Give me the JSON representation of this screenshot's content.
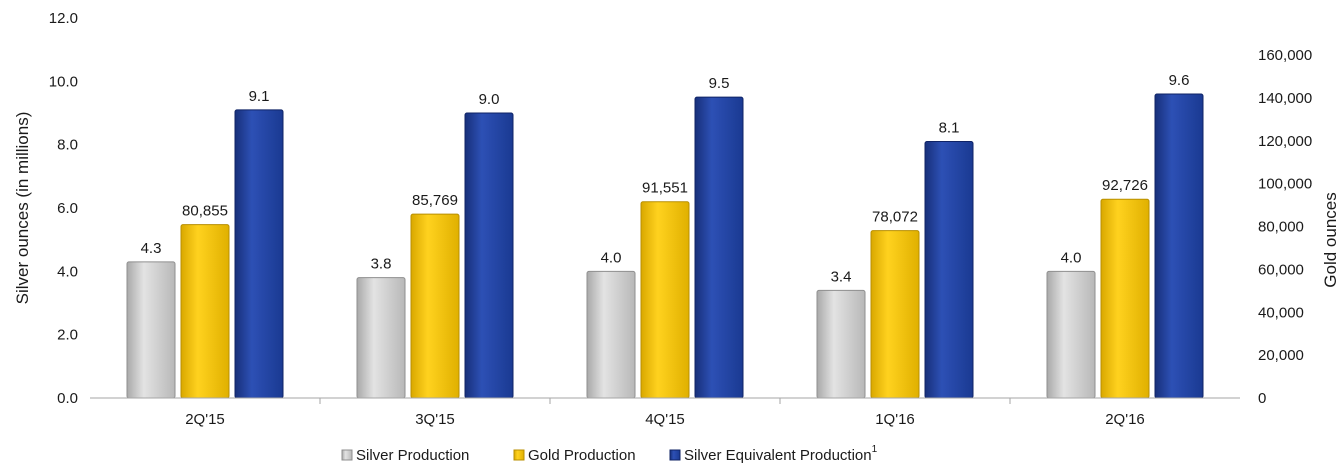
{
  "chart_data": {
    "type": "bar",
    "categories": [
      "2Q'15",
      "3Q'15",
      "4Q'15",
      "1Q'16",
      "2Q'16"
    ],
    "series": [
      {
        "name": "Silver Production",
        "axis": "left",
        "color": "#c8c8c8",
        "values": [
          4.3,
          3.8,
          4.0,
          3.4,
          4.0
        ],
        "labels": [
          "4.3",
          "3.8",
          "4.0",
          "3.4",
          "4.0"
        ]
      },
      {
        "name": "Gold Production",
        "axis": "right",
        "color": "#f2c200",
        "values": [
          80855,
          85769,
          91551,
          78072,
          92726
        ],
        "labels": [
          "80,855",
          "85,769",
          "91,551",
          "78,072",
          "92,726"
        ]
      },
      {
        "name": "Silver Equivalent Production",
        "superscript": "1",
        "axis": "left",
        "color": "#1f3f9a",
        "values": [
          9.1,
          9.0,
          9.5,
          8.1,
          9.6
        ],
        "labels": [
          "9.1",
          "9.0",
          "9.5",
          "8.1",
          "9.6"
        ]
      }
    ],
    "y_left": {
      "label": "Silver ounces (in millions)",
      "min": 0,
      "max": 12,
      "ticks": [
        0,
        2,
        4,
        6,
        8,
        10,
        12
      ],
      "tick_labels": [
        "0.0",
        "2.0",
        "4.0",
        "6.0",
        "8.0",
        "10.0",
        "12.0"
      ]
    },
    "y_right": {
      "label": "Gold ounces",
      "min": 0,
      "max": 160000,
      "ticks": [
        0,
        20000,
        40000,
        60000,
        80000,
        100000,
        120000,
        140000,
        160000
      ],
      "tick_labels": [
        "0",
        "20,000",
        "40,000",
        "60,000",
        "80,000",
        "100,000",
        "120,000",
        "140,000",
        "160,000"
      ]
    },
    "grid": false,
    "legend_position": "bottom"
  }
}
